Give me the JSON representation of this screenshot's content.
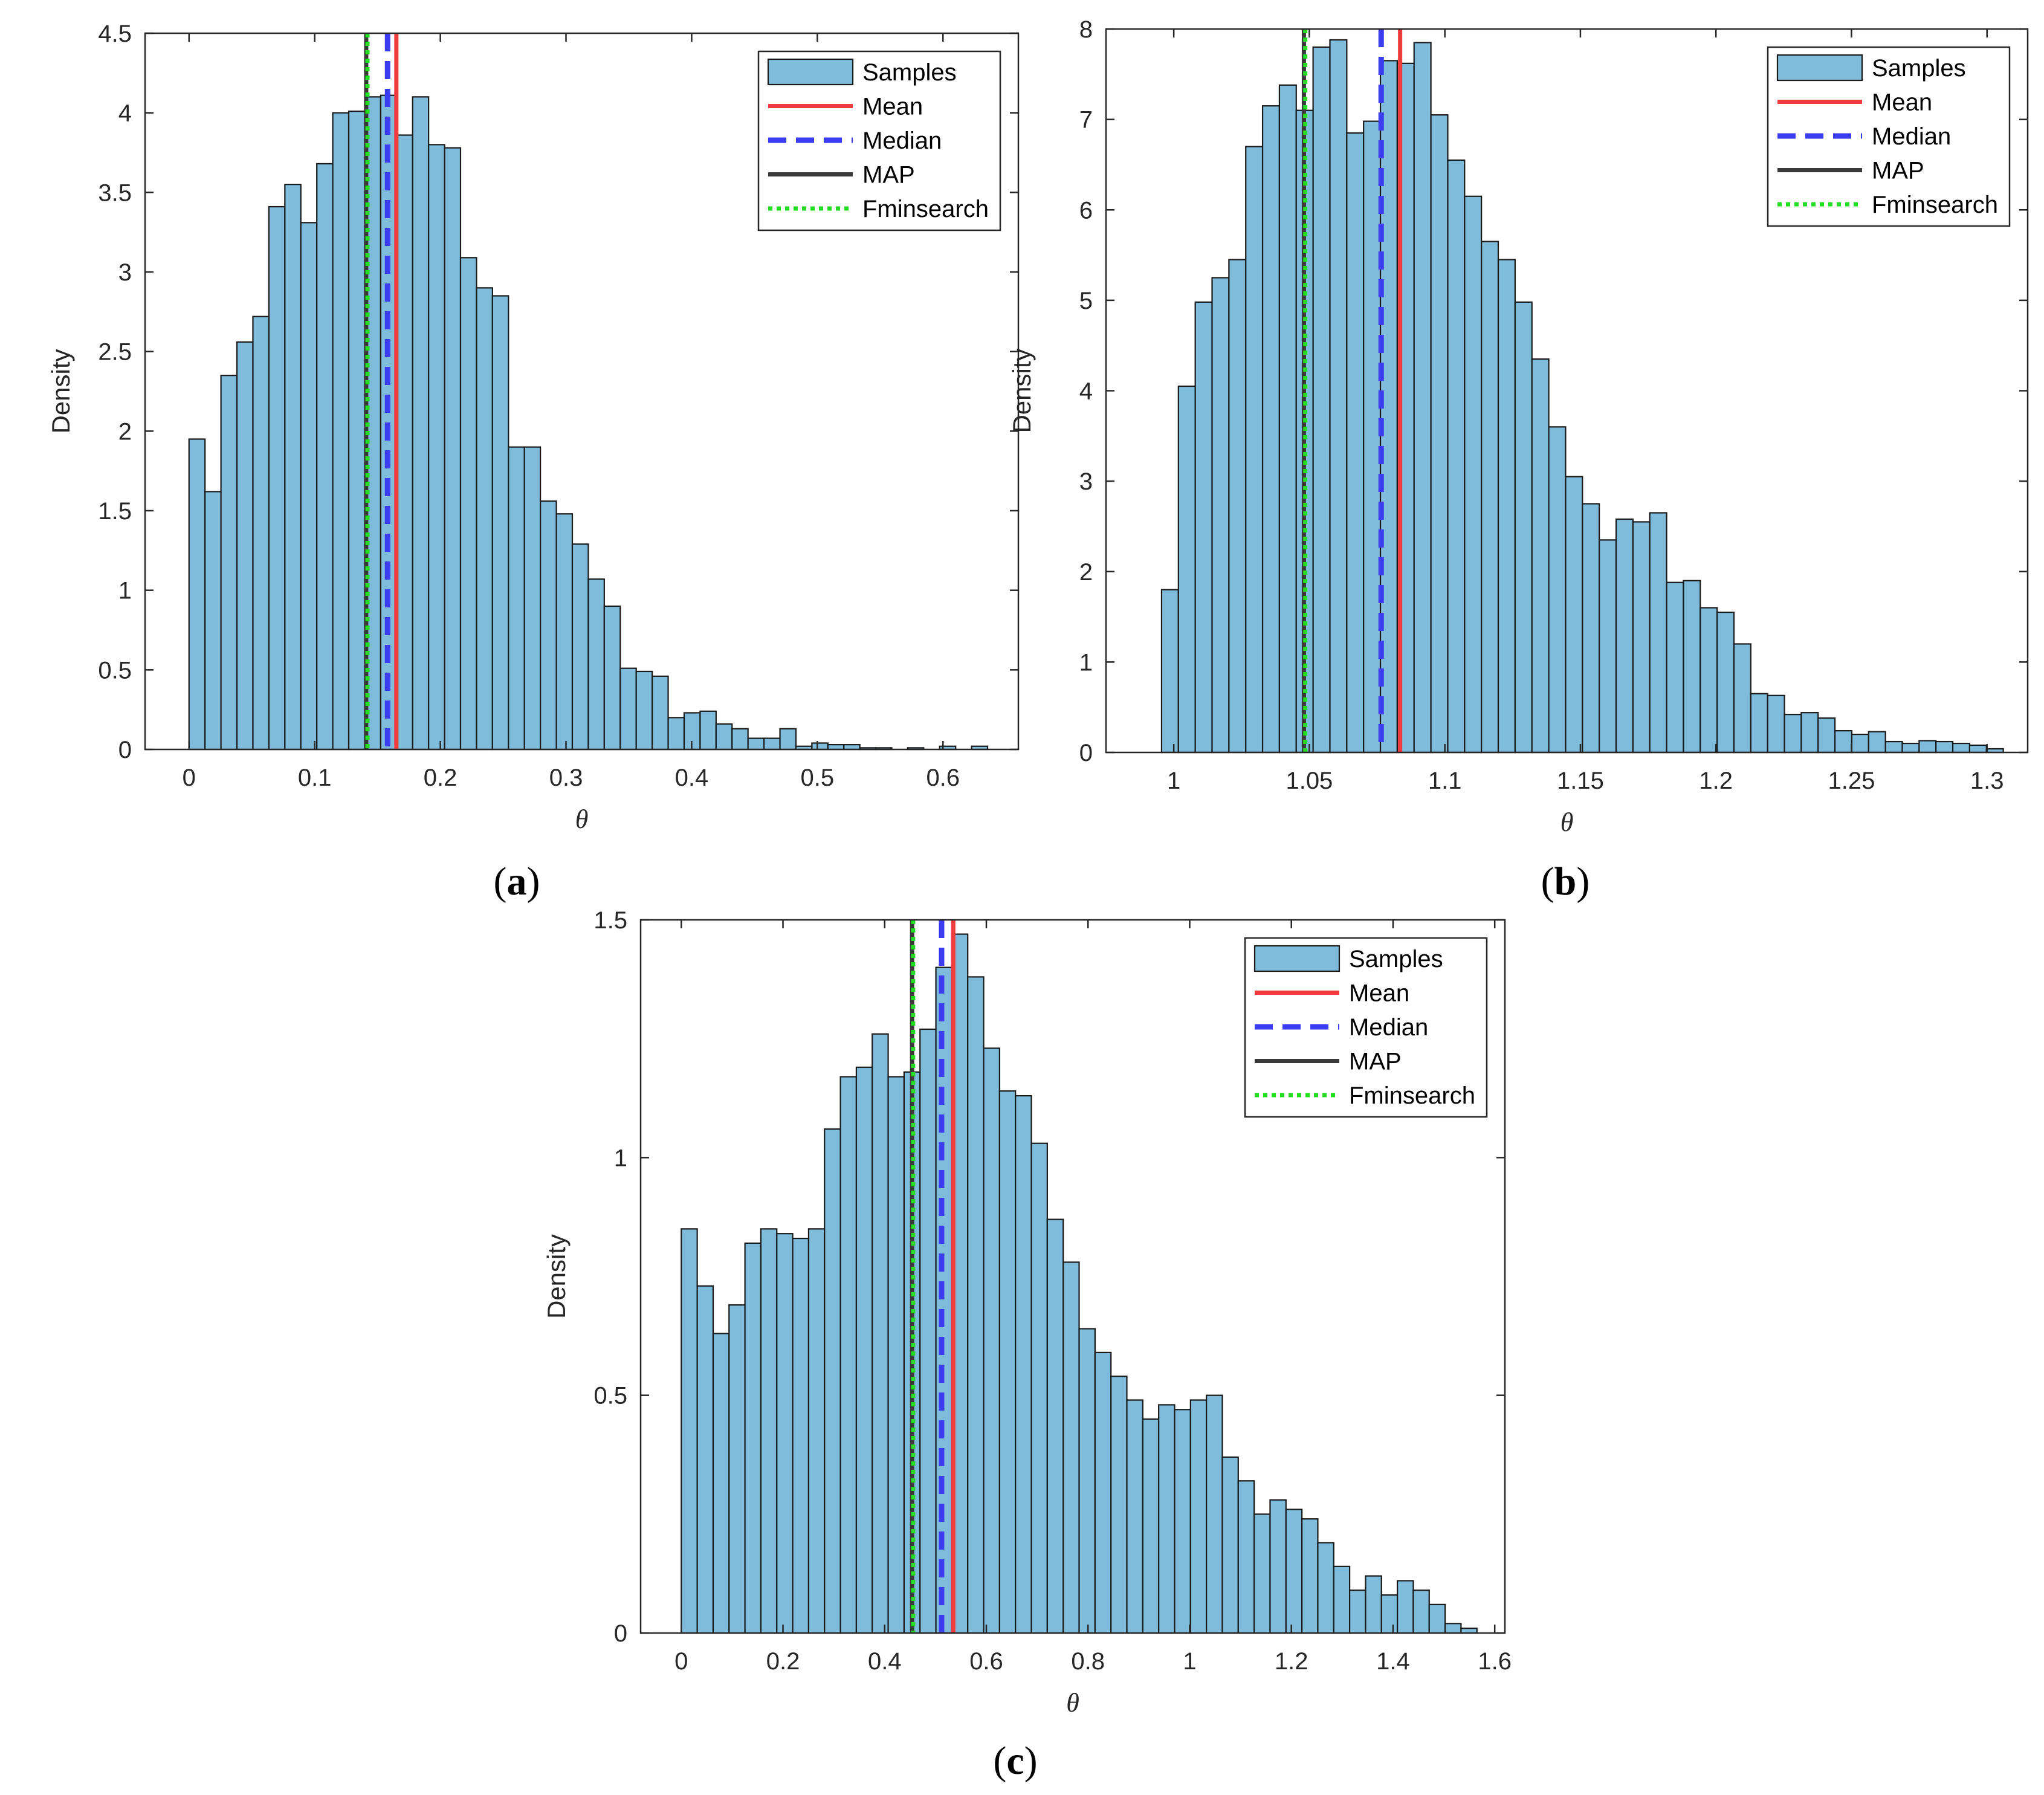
{
  "colors": {
    "bar_fill": "#7FBCDC",
    "bar_stroke": "#1a1a1a",
    "mean": "#F03C3C",
    "median": "#3C3CF0",
    "map": "#3A3A3A",
    "fminsearch": "#22DD22"
  },
  "legend_labels": {
    "samples": "Samples",
    "mean": "Mean",
    "median": "Median",
    "map": "MAP",
    "fminsearch": "Fminsearch"
  },
  "chart_data": [
    {
      "panel_label": "(a)",
      "panel_letter": "a",
      "type": "bar",
      "xlabel": "θ",
      "ylabel": "Density",
      "xlim": [
        -0.035,
        0.66
      ],
      "ylim": [
        0,
        4.5
      ],
      "xticks": [
        0,
        0.1,
        0.2,
        0.3,
        0.4,
        0.5,
        0.6
      ],
      "xtick_labels": [
        "0",
        "0.1",
        "0.2",
        "0.3",
        "0.4",
        "0.5",
        "0.6"
      ],
      "yticks": [
        0,
        0.5,
        1,
        1.5,
        2,
        2.5,
        3,
        3.5,
        4,
        4.5
      ],
      "ytick_labels": [
        "0",
        "0.5",
        "1",
        "1.5",
        "2",
        "2.5",
        "3",
        "3.5",
        "4",
        "4.5"
      ],
      "bin_start": 0.0,
      "bin_width": 0.01271,
      "values": [
        1.95,
        1.62,
        2.35,
        2.56,
        2.72,
        3.41,
        3.55,
        3.31,
        3.68,
        4.0,
        4.01,
        4.1,
        4.11,
        3.86,
        4.1,
        3.8,
        3.78,
        3.09,
        2.9,
        2.85,
        1.9,
        1.9,
        1.56,
        1.48,
        1.29,
        1.07,
        0.9,
        0.51,
        0.49,
        0.46,
        0.2,
        0.23,
        0.24,
        0.16,
        0.13,
        0.07,
        0.07,
        0.13,
        0.02,
        0.04,
        0.03,
        0.03,
        0.01,
        0.01,
        0.0,
        0.01,
        0.0,
        0.02,
        0.0,
        0.02
      ],
      "lines": {
        "mean": 0.165,
        "median": 0.158,
        "map": 0.141,
        "fminsearch": 0.142
      },
      "legend_position": "top-right"
    },
    {
      "panel_label": "(b)",
      "panel_letter": "b",
      "type": "bar",
      "xlabel": "θ",
      "ylabel": "Density",
      "xlim": [
        0.975,
        1.315
      ],
      "ylim": [
        0,
        8
      ],
      "xticks": [
        1,
        1.05,
        1.1,
        1.15,
        1.2,
        1.25,
        1.3
      ],
      "xtick_labels": [
        "1",
        "1.05",
        "1.1",
        "1.15",
        "1.2",
        "1.25",
        "1.3"
      ],
      "yticks": [
        0,
        1,
        2,
        3,
        4,
        5,
        6,
        7,
        8
      ],
      "ytick_labels": [
        "0",
        "1",
        "2",
        "3",
        "4",
        "5",
        "6",
        "7",
        "8"
      ],
      "bin_start": 0.9955,
      "bin_width": 0.00621,
      "values": [
        1.8,
        4.05,
        4.98,
        5.25,
        5.45,
        6.7,
        7.15,
        7.38,
        7.1,
        7.8,
        7.88,
        6.85,
        6.98,
        7.65,
        7.62,
        7.85,
        7.05,
        6.55,
        6.15,
        5.65,
        5.45,
        4.98,
        4.35,
        3.6,
        3.05,
        2.75,
        2.35,
        2.58,
        2.55,
        2.65,
        1.88,
        1.9,
        1.6,
        1.55,
        1.2,
        0.65,
        0.63,
        0.42,
        0.44,
        0.38,
        0.24,
        0.2,
        0.23,
        0.12,
        0.1,
        0.13,
        0.12,
        0.1,
        0.08,
        0.04
      ],
      "lines": {
        "mean": 1.0835,
        "median": 1.0765,
        "map": 1.048,
        "fminsearch": 1.0485
      },
      "legend_position": "top-right"
    },
    {
      "panel_label": "(c)",
      "panel_letter": "c",
      "type": "bar",
      "xlabel": "θ",
      "ylabel": "Density",
      "xlim": [
        -0.08,
        1.62
      ],
      "ylim": [
        0,
        1.5
      ],
      "xticks": [
        0,
        0.2,
        0.4,
        0.6,
        0.8,
        1,
        1.2,
        1.4,
        1.6
      ],
      "xtick_labels": [
        "0",
        "0.2",
        "0.4",
        "0.6",
        "0.8",
        "1",
        "1.2",
        "1.4",
        "1.6"
      ],
      "yticks": [
        0,
        0.5,
        1,
        1.5
      ],
      "ytick_labels": [
        "0",
        "0.5",
        "1",
        "1.5"
      ],
      "bin_start": 0.0,
      "bin_width": 0.0313,
      "values": [
        0.85,
        0.73,
        0.63,
        0.69,
        0.82,
        0.85,
        0.84,
        0.83,
        0.85,
        1.06,
        1.17,
        1.19,
        1.26,
        1.17,
        1.18,
        1.27,
        1.4,
        1.47,
        1.38,
        1.23,
        1.14,
        1.13,
        1.03,
        0.87,
        0.78,
        0.64,
        0.59,
        0.54,
        0.49,
        0.45,
        0.48,
        0.47,
        0.49,
        0.5,
        0.37,
        0.32,
        0.25,
        0.28,
        0.26,
        0.24,
        0.19,
        0.14,
        0.09,
        0.12,
        0.08,
        0.11,
        0.09,
        0.06,
        0.02,
        0.01
      ],
      "lines": {
        "mean": 0.535,
        "median": 0.512,
        "map": 0.454,
        "fminsearch": 0.456
      },
      "legend_position": "top-right"
    }
  ]
}
